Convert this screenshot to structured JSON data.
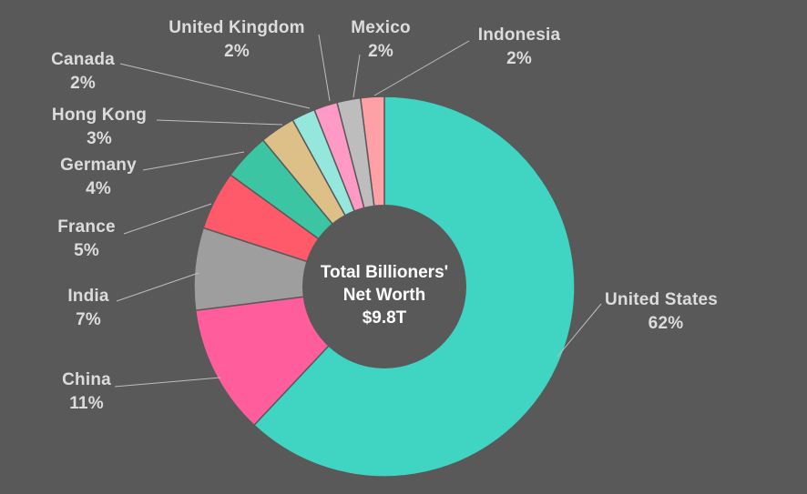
{
  "chart_data": {
    "type": "pie",
    "donut": true,
    "center_label": [
      "Total Billioners'",
      "Net Worth",
      "$9.8T"
    ],
    "legend": "none",
    "slices": [
      {
        "name": "United States",
        "value": 62,
        "label": "62%",
        "color": "#40d4c2"
      },
      {
        "name": "China",
        "value": 11,
        "label": "11%",
        "color": "#ff5d9c"
      },
      {
        "name": "India",
        "value": 7,
        "label": "7%",
        "color": "#9e9e9e"
      },
      {
        "name": "France",
        "value": 5,
        "label": "5%",
        "color": "#ff5a6a"
      },
      {
        "name": "Germany",
        "value": 4,
        "label": "4%",
        "color": "#3cc5a2"
      },
      {
        "name": "Hong Kong",
        "value": 3,
        "label": "3%",
        "color": "#dcc088"
      },
      {
        "name": "Canada",
        "value": 2,
        "label": "2%",
        "color": "#95e6dc"
      },
      {
        "name": "United Kingdom",
        "value": 2,
        "label": "2%",
        "color": "#ff9ac6"
      },
      {
        "name": "Mexico",
        "value": 2,
        "label": "2%",
        "color": "#bdbdbd"
      },
      {
        "name": "Indonesia",
        "value": 2,
        "label": "2%",
        "color": "#ff9fa6"
      }
    ]
  }
}
